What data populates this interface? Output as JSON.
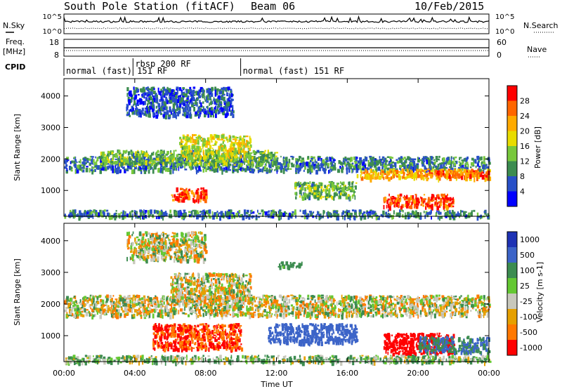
{
  "header": {
    "station": "South Pole Station (fitACF)",
    "beam": "Beam 06",
    "date": "10/Feb/2015"
  },
  "strip_labels": {
    "nsky": "N.Sky",
    "freq_top": "Freq.",
    "freq_unit": "[MHz]",
    "cpid": "CPID",
    "nsearch": "N.Search",
    "nave": "Nave"
  },
  "ticks": {
    "noise_left": [
      "10^5",
      "10^0"
    ],
    "noise_right": [
      "10^5",
      "10^0"
    ],
    "freq_left": [
      "18",
      "8"
    ],
    "nave_right": [
      "60",
      "0"
    ]
  },
  "cpid_modes": [
    {
      "label": "normal (fast) 151 RF",
      "start_hr": 0.0,
      "end_hr": 3.9
    },
    {
      "label": "rbsp 200 RF",
      "start_hr": 3.9,
      "end_hr": 9.98
    },
    {
      "label": "normal (fast) 151 RF",
      "start_hr": 9.98,
      "end_hr": 24.0
    }
  ],
  "power_colorbar": {
    "title": "Power [dB]",
    "ticks": [
      "28",
      "24",
      "20",
      "16",
      "12",
      "8",
      "4"
    ],
    "colors": [
      "#ff0000",
      "#ff6600",
      "#ffaa00",
      "#e8dc00",
      "#78c83c",
      "#3c8c50",
      "#2850c8",
      "#0000ff"
    ]
  },
  "velocity_colorbar": {
    "title": "Velocity [m s-1]",
    "ticks": [
      "1000",
      "500",
      "100",
      "25",
      "-25",
      "-100",
      "-500",
      "-1000"
    ],
    "colors": [
      "#1e32b4",
      "#3c64c8",
      "#3c8c50",
      "#64c832",
      "#c8c8bc",
      "#e6a000",
      "#ff7800",
      "#ff0000"
    ]
  },
  "xaxis": {
    "ticks": [
      "00:00",
      "04:00",
      "08:00",
      "12:00",
      "16:00",
      "20:00",
      "00:00"
    ],
    "label": "Time UT"
  },
  "chart_data": [
    {
      "type": "heatmap",
      "title": "Power",
      "xlabel": "Time UT",
      "ylabel": "Slant Range [km]",
      "xlim": [
        0,
        24
      ],
      "ylim": [
        180,
        4550
      ],
      "ytick_labels": [
        "1000",
        "2000",
        "3000",
        "4000"
      ],
      "zlim": [
        0,
        30
      ],
      "z_unit": "dB",
      "regions": [
        {
          "x": [
            0.0,
            24.0
          ],
          "y": [
            1650,
            2100
          ],
          "z": 8
        },
        {
          "x": [
            2.0,
            12.0
          ],
          "y": [
            1850,
            2300
          ],
          "z": 12
        },
        {
          "x": [
            6.5,
            10.5
          ],
          "y": [
            2100,
            2800
          ],
          "z": 16
        },
        {
          "x": [
            16.5,
            24.0
          ],
          "y": [
            1400,
            1700
          ],
          "z": 20
        },
        {
          "x": [
            20.5,
            24.0
          ],
          "y": [
            1450,
            1650
          ],
          "z": 24
        },
        {
          "x": [
            6.0,
            8.0
          ],
          "y": [
            700,
            1100
          ],
          "z": 26
        },
        {
          "x": [
            18.0,
            22.0
          ],
          "y": [
            500,
            900
          ],
          "z": 26
        },
        {
          "x": [
            3.5,
            9.5
          ],
          "y": [
            3400,
            4300
          ],
          "z": 6
        },
        {
          "x": [
            13.0,
            16.5
          ],
          "y": [
            800,
            1300
          ],
          "z": 12
        },
        {
          "x": [
            0.0,
            24.0
          ],
          "y": [
            180,
            400
          ],
          "z": 8
        }
      ]
    },
    {
      "type": "heatmap",
      "title": "Velocity",
      "xlabel": "Time UT",
      "ylabel": "Slant Range [km]",
      "xlim": [
        0,
        24
      ],
      "ylim": [
        180,
        4550
      ],
      "ytick_labels": [
        "1000",
        "2000",
        "3000",
        "4000"
      ],
      "zlim": [
        -1000,
        1000
      ],
      "z_unit": "m s-1",
      "regions": [
        {
          "x": [
            0.0,
            24.0
          ],
          "y": [
            1650,
            2300
          ],
          "v": 0
        },
        {
          "x": [
            6.0,
            10.5
          ],
          "y": [
            2100,
            3000
          ],
          "v": 0
        },
        {
          "x": [
            3.5,
            8.0
          ],
          "y": [
            3400,
            4300
          ],
          "v": 0
        },
        {
          "x": [
            11.5,
            16.5
          ],
          "y": [
            800,
            1400
          ],
          "v": 600
        },
        {
          "x": [
            5.0,
            10.0
          ],
          "y": [
            600,
            1400
          ],
          "v": -300
        },
        {
          "x": [
            18.0,
            22.0
          ],
          "y": [
            450,
            1100
          ],
          "v": -500
        },
        {
          "x": [
            20.0,
            24.0
          ],
          "y": [
            500,
            1000
          ],
          "v": 300
        },
        {
          "x": [
            12.0,
            13.5
          ],
          "y": [
            3200,
            3350
          ],
          "v": 150
        },
        {
          "x": [
            0.0,
            24.0
          ],
          "y": [
            180,
            400
          ],
          "v": 50
        }
      ]
    }
  ]
}
